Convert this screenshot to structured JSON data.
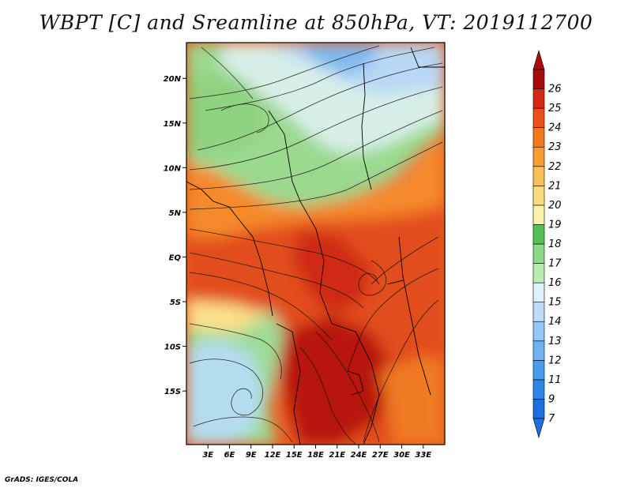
{
  "title": "WBPT [C] and Sreamline at 850hPa, VT: 2019112700",
  "footer": "GrADS: IGES/COLA",
  "map": {
    "lon_range": [
      0,
      36
    ],
    "lat_range": [
      -21,
      24
    ],
    "x_ticks": [
      "3E",
      "6E",
      "9E",
      "12E",
      "15E",
      "18E",
      "21E",
      "24E",
      "27E",
      "30E",
      "33E"
    ],
    "y_ticks": [
      "20N",
      "15N",
      "10N",
      "5N",
      "EQ",
      "5S",
      "10S",
      "15S"
    ]
  },
  "colorbar": {
    "labels": [
      "7",
      "9",
      "11",
      "12",
      "13",
      "14",
      "15",
      "16",
      "17",
      "18",
      "19",
      "20",
      "21",
      "22",
      "23",
      "24",
      "25",
      "26"
    ],
    "colors": [
      "#1e6ee0",
      "#2e86ea",
      "#4a9cf0",
      "#6cb2f4",
      "#94c8f8",
      "#bcdcfa",
      "#ddf0fc",
      "#b9ecb0",
      "#8ed98a",
      "#52c252",
      "#fcf2a8",
      "#fcdc80",
      "#fcbe5a",
      "#f89c30",
      "#f27a1e",
      "#e85218",
      "#d42a12",
      "#a80a0a"
    ]
  }
}
